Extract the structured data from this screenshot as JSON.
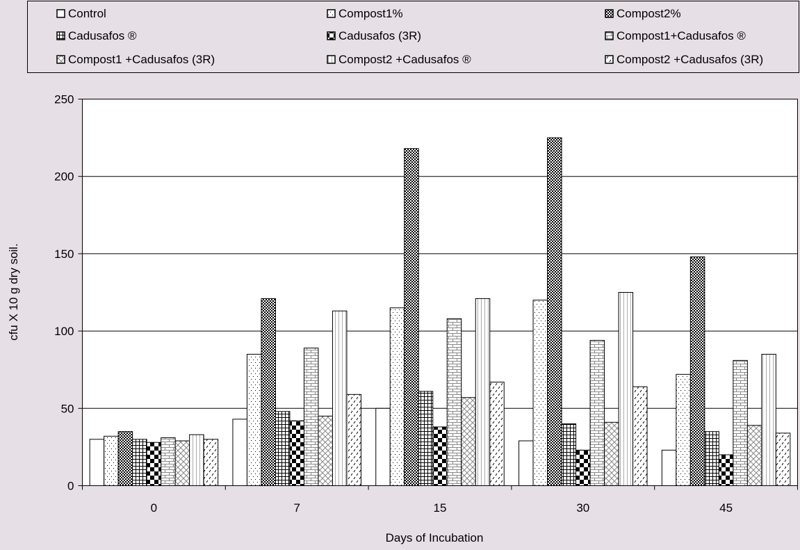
{
  "chart_data": {
    "type": "bar",
    "title": "",
    "xlabel": "Days of Incubation",
    "ylabel": "cfu X 10 g dry soil.",
    "categories": [
      "0",
      "7",
      "15",
      "30",
      "45"
    ],
    "ylim": [
      0,
      250
    ],
    "yticks": [
      "0",
      "50",
      "100",
      "150",
      "200",
      "250"
    ],
    "grid": true,
    "legend_position": "top",
    "series": [
      {
        "name": "Control",
        "values": [
          30,
          43,
          50,
          29,
          23
        ],
        "pattern": "plain"
      },
      {
        "name": "Compost1%",
        "values": [
          32,
          85,
          115,
          120,
          72
        ],
        "pattern": "dots"
      },
      {
        "name": "Compost2%",
        "values": [
          35,
          121,
          218,
          225,
          148
        ],
        "pattern": "check-fine"
      },
      {
        "name": "Cadusafos ®",
        "values": [
          30,
          48,
          61,
          40,
          35
        ],
        "pattern": "grid"
      },
      {
        "name": "Cadusafos (3R)",
        "values": [
          28,
          42,
          38,
          23,
          20
        ],
        "pattern": "check-big"
      },
      {
        "name": "Compost1+Cadusafos ®",
        "values": [
          31,
          89,
          108,
          94,
          81
        ],
        "pattern": "brick"
      },
      {
        "name": "Compost1 +Cadusafos (3R)",
        "values": [
          29,
          45,
          57,
          41,
          39
        ],
        "pattern": "diag-cross"
      },
      {
        "name": "Compost2 +Cadusafos ®",
        "values": [
          33,
          113,
          121,
          125,
          85
        ],
        "pattern": "vlines"
      },
      {
        "name": "Compost2 +Cadusafos (3R)",
        "values": [
          30,
          59,
          67,
          64,
          34
        ],
        "pattern": "dashes"
      }
    ],
    "colors": {
      "background": "#e7dfe6",
      "plot_background": "#ffffff",
      "bar_stroke": "#000000",
      "grid": "#000000"
    }
  }
}
